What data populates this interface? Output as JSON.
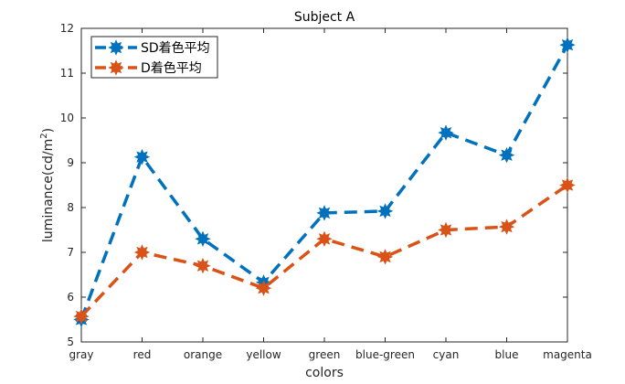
{
  "chart_data": {
    "type": "line",
    "title": "Subject A",
    "xlabel": "colors",
    "ylabel": "luminance(cd/m",
    "ylabel_superscript": "2",
    "ylabel_suffix": ")",
    "categories": [
      "gray",
      "red",
      "orange",
      "yellow",
      "green",
      "blue-green",
      "cyan",
      "blue",
      "magenta"
    ],
    "ylim": [
      5,
      12
    ],
    "yticks": [
      5,
      6,
      7,
      8,
      9,
      10,
      11,
      12
    ],
    "grid": false,
    "legend_position": "top-left",
    "series": [
      {
        "name": "SD着色平均",
        "color": "#0072BD",
        "marker": "star",
        "line_style": "dashed",
        "values": [
          5.5,
          9.13,
          7.3,
          6.33,
          7.88,
          7.92,
          9.67,
          9.17,
          11.63
        ]
      },
      {
        "name": "D着色平均",
        "color": "#D95319",
        "marker": "star",
        "line_style": "dashed",
        "values": [
          5.57,
          7.0,
          6.7,
          6.2,
          7.3,
          6.9,
          7.5,
          7.57,
          8.5
        ]
      }
    ]
  }
}
